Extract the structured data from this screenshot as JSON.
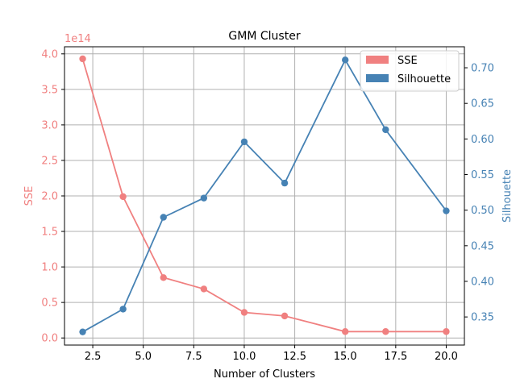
{
  "chart_data": {
    "type": "line",
    "title": "GMM Cluster",
    "xlabel": "Number of Clusters",
    "ylabel_left": "SSE",
    "ylabel_right": "Silhouette",
    "left_offset_label": "1e14",
    "x": [
      2,
      4,
      6,
      8,
      10,
      12,
      15,
      17,
      20
    ],
    "xlim": [
      1.1,
      20.9
    ],
    "xticks": [
      2.5,
      5.0,
      7.5,
      10.0,
      12.5,
      15.0,
      17.5,
      20.0
    ],
    "xtick_labels": [
      "2.5",
      "5.0",
      "7.5",
      "10.0",
      "12.5",
      "15.0",
      "17.5",
      "20.0"
    ],
    "ylim_left": [
      -0.1,
      4.1
    ],
    "yticks_left": [
      0.0,
      0.5,
      1.0,
      1.5,
      2.0,
      2.5,
      3.0,
      3.5,
      4.0
    ],
    "ytick_labels_left": [
      "0.0",
      "0.5",
      "1.0",
      "1.5",
      "2.0",
      "2.5",
      "3.0",
      "3.5",
      "4.0"
    ],
    "ylim_right": [
      0.3105,
      0.7295
    ],
    "yticks_right": [
      0.35,
      0.4,
      0.45,
      0.5,
      0.55,
      0.6,
      0.65,
      0.7
    ],
    "ytick_labels_right": [
      "0.35",
      "0.40",
      "0.45",
      "0.50",
      "0.55",
      "0.60",
      "0.65",
      "0.70"
    ],
    "grid": true,
    "legend_position": "top-right",
    "series": [
      {
        "name": "SSE",
        "axis": "left",
        "color": "#f08080",
        "values": [
          3.93,
          1.99,
          0.85,
          0.69,
          0.36,
          0.31,
          0.09,
          0.09,
          0.09
        ]
      },
      {
        "name": "Silhouette",
        "axis": "right",
        "color": "#4682b4",
        "values": [
          0.329,
          0.361,
          0.49,
          0.517,
          0.596,
          0.538,
          0.711,
          0.613,
          0.499
        ]
      }
    ]
  }
}
